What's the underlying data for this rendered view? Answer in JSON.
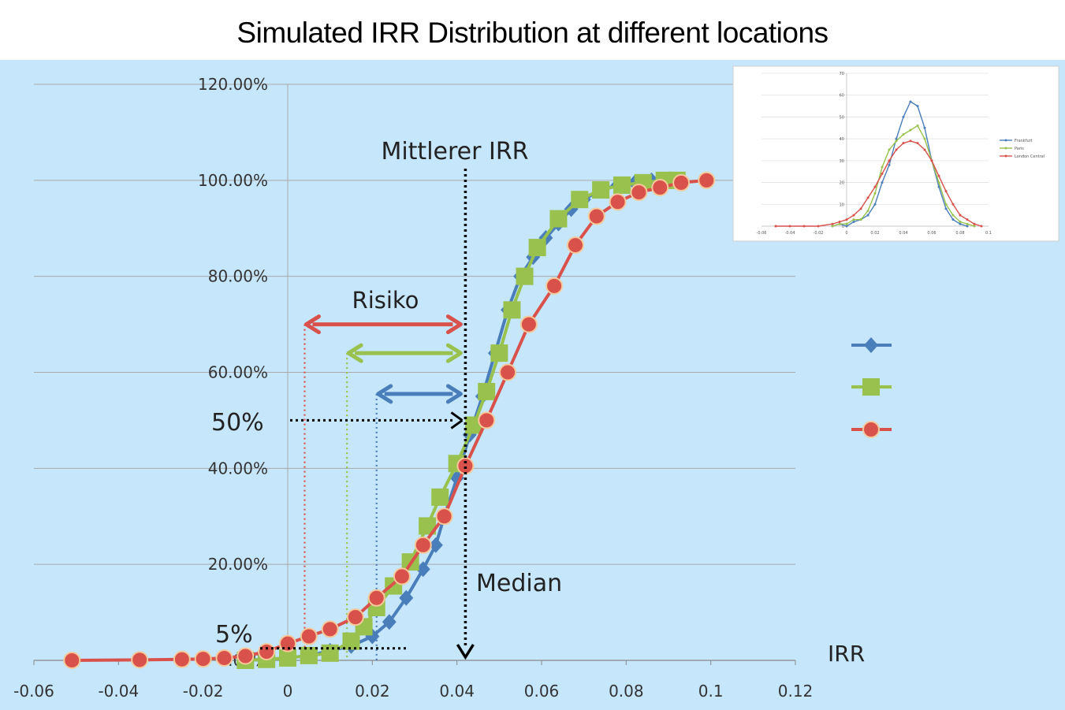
{
  "title": "Simulated IRR Distribution at different locations",
  "chart_data": [
    {
      "type": "line",
      "title": "Simulated IRR Distribution at different locations",
      "xlabel": "IRR",
      "ylabel": "",
      "xlim": [
        -0.06,
        0.12
      ],
      "ylim": [
        0,
        1.2
      ],
      "x_ticks": [
        "-0.06",
        "-0.04",
        "-0.02",
        "0",
        "0.02",
        "0.04",
        "0.06",
        "0.08",
        "0.1",
        "0.12"
      ],
      "y_ticks": [
        "0.00%",
        "20.00%",
        "40.00%",
        "60.00%",
        "80.00%",
        "100.00%",
        "120.00%"
      ],
      "grid": true,
      "legend": "right",
      "colors": {
        "blue": "#4a7ebb",
        "green": "#98c24d",
        "red": "#d9514b"
      },
      "series": [
        {
          "marker": "diamond",
          "color": "#4a7ebb",
          "points": [
            [
              -0.01,
              0
            ],
            [
              -0.005,
              0.002
            ],
            [
              0,
              0.005
            ],
            [
              0.005,
              0.01
            ],
            [
              0.01,
              0.02
            ],
            [
              0.015,
              0.03
            ],
            [
              0.02,
              0.05
            ],
            [
              0.024,
              0.08
            ],
            [
              0.028,
              0.13
            ],
            [
              0.032,
              0.19
            ],
            [
              0.035,
              0.24
            ],
            [
              0.037,
              0.3
            ],
            [
              0.04,
              0.38
            ],
            [
              0.043,
              0.47
            ],
            [
              0.046,
              0.55
            ],
            [
              0.049,
              0.64
            ],
            [
              0.052,
              0.73
            ],
            [
              0.055,
              0.8
            ],
            [
              0.058,
              0.84
            ],
            [
              0.061,
              0.88
            ],
            [
              0.064,
              0.91
            ],
            [
              0.067,
              0.94
            ],
            [
              0.07,
              0.96
            ],
            [
              0.074,
              0.98
            ],
            [
              0.078,
              0.99
            ],
            [
              0.082,
              0.995
            ],
            [
              0.086,
              1.0
            ],
            [
              0.09,
              1.0
            ]
          ]
        },
        {
          "marker": "square",
          "color": "#98c24d",
          "points": [
            [
              -0.01,
              0
            ],
            [
              -0.005,
              0.002
            ],
            [
              0,
              0.005
            ],
            [
              0.005,
              0.01
            ],
            [
              0.01,
              0.015
            ],
            [
              0.015,
              0.04
            ],
            [
              0.018,
              0.07
            ],
            [
              0.021,
              0.11
            ],
            [
              0.025,
              0.155
            ],
            [
              0.029,
              0.205
            ],
            [
              0.033,
              0.28
            ],
            [
              0.036,
              0.34
            ],
            [
              0.04,
              0.41
            ],
            [
              0.044,
              0.49
            ],
            [
              0.047,
              0.56
            ],
            [
              0.05,
              0.64
            ],
            [
              0.053,
              0.73
            ],
            [
              0.056,
              0.8
            ],
            [
              0.059,
              0.86
            ],
            [
              0.064,
              0.92
            ],
            [
              0.069,
              0.96
            ],
            [
              0.074,
              0.98
            ],
            [
              0.079,
              0.99
            ],
            [
              0.084,
              0.995
            ],
            [
              0.089,
              1.0
            ],
            [
              0.092,
              1.0
            ]
          ]
        },
        {
          "marker": "circle",
          "color": "#d9514b",
          "points": [
            [
              -0.051,
              0.0
            ],
            [
              -0.035,
              0.001
            ],
            [
              -0.025,
              0.002
            ],
            [
              -0.02,
              0.003
            ],
            [
              -0.015,
              0.005
            ],
            [
              -0.01,
              0.009
            ],
            [
              -0.005,
              0.018
            ],
            [
              0,
              0.035
            ],
            [
              0.005,
              0.05
            ],
            [
              0.01,
              0.065
            ],
            [
              0.016,
              0.09
            ],
            [
              0.021,
              0.13
            ],
            [
              0.027,
              0.175
            ],
            [
              0.032,
              0.24
            ],
            [
              0.037,
              0.3
            ],
            [
              0.042,
              0.405
            ],
            [
              0.047,
              0.5
            ],
            [
              0.052,
              0.6
            ],
            [
              0.057,
              0.7
            ],
            [
              0.063,
              0.78
            ],
            [
              0.068,
              0.865
            ],
            [
              0.073,
              0.925
            ],
            [
              0.078,
              0.955
            ],
            [
              0.083,
              0.975
            ],
            [
              0.088,
              0.985
            ],
            [
              0.093,
              0.995
            ],
            [
              0.099,
              1.0
            ]
          ]
        }
      ],
      "annotations": {
        "mean_label": "Mittlerer IRR",
        "median_label": "Median",
        "risk_label": "Risiko",
        "pct50_label": "50%",
        "pct5_label": "5%",
        "median_x": 0.042,
        "risk_arrows": [
          {
            "color": "#d9514b",
            "from_x": 0.004,
            "to_x": 0.042,
            "y": 0.7
          },
          {
            "color": "#98c24d",
            "from_x": 0.014,
            "to_x": 0.042,
            "y": 0.64
          },
          {
            "color": "#4a7ebb",
            "from_x": 0.021,
            "to_x": 0.042,
            "y": 0.555
          }
        ]
      }
    },
    {
      "type": "line",
      "title": "",
      "xlim": [
        -0.06,
        0.1
      ],
      "ylim": [
        0,
        70
      ],
      "x_ticks": [
        "-0.06",
        "-0.04",
        "-0.02",
        "0",
        "0.02",
        "0.04",
        "0.06",
        "0.08",
        "0.1"
      ],
      "y_ticks": [
        "0",
        "10",
        "20",
        "30",
        "40",
        "50",
        "60",
        "70"
      ],
      "legend": "right",
      "series": [
        {
          "name": "Frankfurt",
          "color": "#4a7ebb",
          "points": [
            [
              -0.01,
              0
            ],
            [
              -0.005,
              1
            ],
            [
              0,
              0
            ],
            [
              0.005,
              2
            ],
            [
              0.01,
              3
            ],
            [
              0.015,
              5
            ],
            [
              0.02,
              10
            ],
            [
              0.025,
              20
            ],
            [
              0.03,
              28
            ],
            [
              0.035,
              40
            ],
            [
              0.04,
              50
            ],
            [
              0.045,
              57
            ],
            [
              0.05,
              55
            ],
            [
              0.055,
              45
            ],
            [
              0.06,
              30
            ],
            [
              0.065,
              18
            ],
            [
              0.07,
              8
            ],
            [
              0.075,
              3
            ],
            [
              0.08,
              1
            ],
            [
              0.085,
              0
            ]
          ]
        },
        {
          "name": "Paris",
          "color": "#98c24d",
          "points": [
            [
              -0.01,
              0
            ],
            [
              -0.005,
              1
            ],
            [
              0,
              1
            ],
            [
              0.005,
              3
            ],
            [
              0.01,
              3
            ],
            [
              0.015,
              7
            ],
            [
              0.02,
              15
            ],
            [
              0.025,
              27
            ],
            [
              0.03,
              35
            ],
            [
              0.035,
              39
            ],
            [
              0.04,
              42
            ],
            [
              0.045,
              44
            ],
            [
              0.05,
              46
            ],
            [
              0.055,
              40
            ],
            [
              0.06,
              30
            ],
            [
              0.065,
              20
            ],
            [
              0.07,
              10
            ],
            [
              0.075,
              5
            ],
            [
              0.08,
              2
            ],
            [
              0.085,
              1
            ],
            [
              0.09,
              0
            ]
          ]
        },
        {
          "name": "London Central",
          "color": "#d9514b",
          "points": [
            [
              -0.05,
              0
            ],
            [
              -0.04,
              0
            ],
            [
              -0.03,
              0
            ],
            [
              -0.02,
              0
            ],
            [
              -0.01,
              1
            ],
            [
              -0.005,
              2
            ],
            [
              0,
              3
            ],
            [
              0.005,
              5
            ],
            [
              0.01,
              8
            ],
            [
              0.015,
              13
            ],
            [
              0.02,
              18
            ],
            [
              0.025,
              24
            ],
            [
              0.03,
              30
            ],
            [
              0.035,
              35
            ],
            [
              0.04,
              38
            ],
            [
              0.045,
              39
            ],
            [
              0.05,
              38
            ],
            [
              0.055,
              35
            ],
            [
              0.06,
              30
            ],
            [
              0.065,
              23
            ],
            [
              0.07,
              16
            ],
            [
              0.075,
              10
            ],
            [
              0.08,
              5
            ],
            [
              0.085,
              3
            ],
            [
              0.09,
              1
            ],
            [
              0.095,
              0
            ]
          ]
        }
      ]
    }
  ]
}
